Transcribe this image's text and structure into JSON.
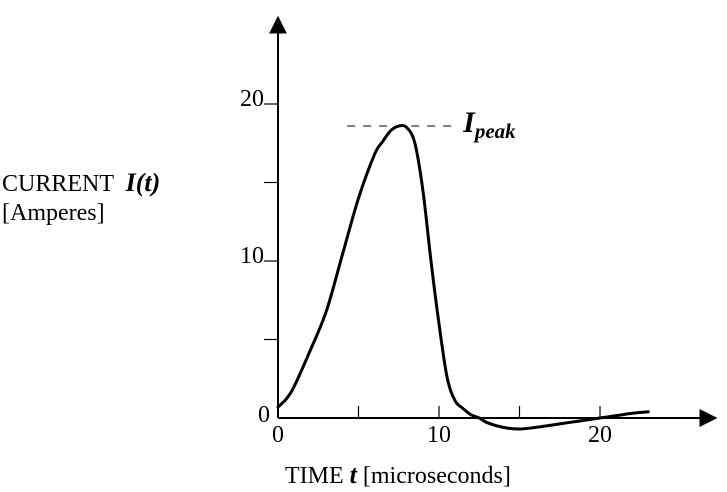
{
  "chart_data": {
    "type": "line",
    "title": "",
    "xlabel": {
      "prefix": "TIME ",
      "symbol": "t",
      "suffix": " [microseconds]"
    },
    "ylabel": {
      "line1_prefix": "CURRENT  ",
      "symbol": "I(t)",
      "line2": "[Amperes]"
    },
    "xlim": [
      0,
      27
    ],
    "ylim": [
      -1,
      25
    ],
    "x_ticks": [
      0,
      5,
      10,
      15,
      20
    ],
    "x_tick_labels": [
      "0",
      "10",
      "20"
    ],
    "y_ticks": [
      0,
      5,
      10,
      15,
      20
    ],
    "y_tick_labels": [
      "0",
      "10",
      "20"
    ],
    "series": [
      {
        "x": [
          0,
          0.5,
          1,
          2,
          3,
          4,
          5,
          6,
          6.5,
          7,
          7.5,
          8,
          8.5,
          9,
          9.5,
          10,
          10.5,
          11,
          11.5,
          12,
          12.5,
          13,
          14,
          15,
          16,
          17,
          18,
          19,
          20,
          21,
          22,
          23
        ],
        "y": [
          0.7,
          1.2,
          2.0,
          4.3,
          6.8,
          10.4,
          14.0,
          16.8,
          17.6,
          18.3,
          18.6,
          18.5,
          17.5,
          14.5,
          10.0,
          6.0,
          2.6,
          1.1,
          0.6,
          0.2,
          0.0,
          -0.3,
          -0.6,
          -0.7,
          -0.6,
          -0.45,
          -0.3,
          -0.15,
          0.0,
          0.15,
          0.3,
          0.4
        ]
      }
    ],
    "annotations": [
      {
        "label": "I",
        "subscript": "peak",
        "y": 18.6
      }
    ],
    "grid": false,
    "legend": "none"
  }
}
